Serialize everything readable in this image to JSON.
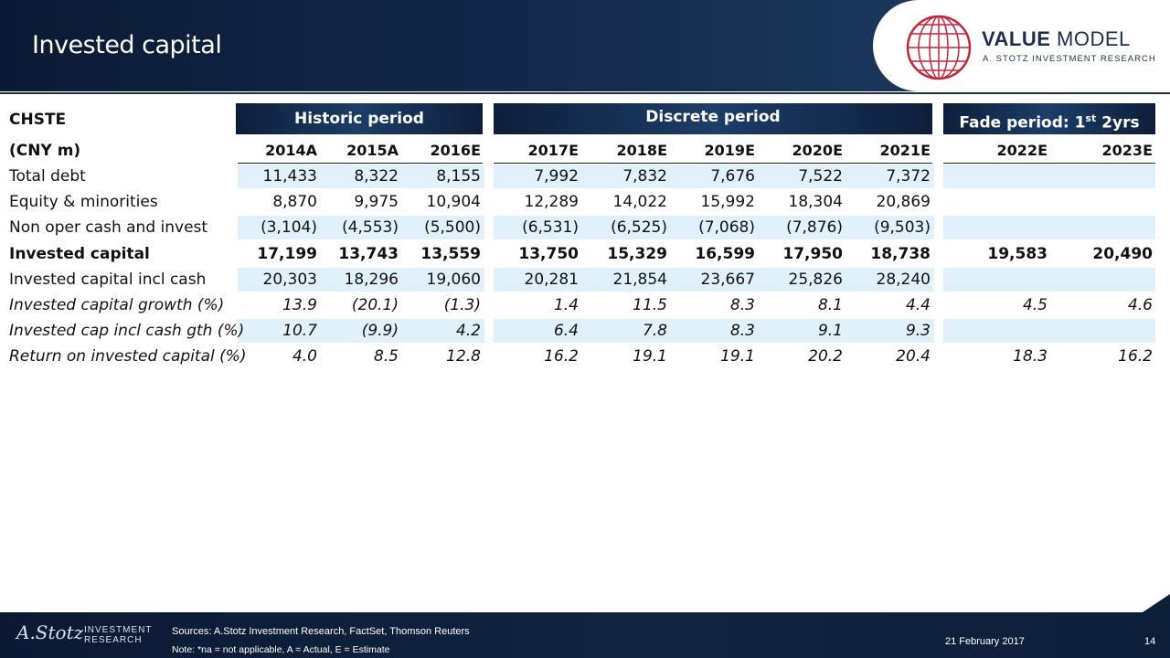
{
  "header": {
    "title": "Invested capital",
    "brand_bold": "VALUE",
    "brand_light": " MODEL",
    "brand_sub": "A. STOTZ INVESTMENT RESEARCH"
  },
  "table": {
    "ticker": "CHSTE",
    "unit": "(CNY m)",
    "groups": {
      "historic": "Historic period",
      "discrete": "Discrete period",
      "fade_prefix": "Fade period: 1",
      "fade_sup": "st",
      "fade_suffix": " 2yrs"
    },
    "years": [
      "2014A",
      "2015A",
      "2016E",
      "2017E",
      "2018E",
      "2019E",
      "2020E",
      "2021E",
      "2022E",
      "2023E"
    ],
    "rows": [
      {
        "label": "Total debt",
        "values": [
          "11,433",
          "8,322",
          "8,155",
          "7,992",
          "7,832",
          "7,676",
          "7,522",
          "7,372",
          "",
          ""
        ]
      },
      {
        "label": "Equity & minorities",
        "values": [
          "8,870",
          "9,975",
          "10,904",
          "12,289",
          "14,022",
          "15,992",
          "18,304",
          "20,869",
          "",
          ""
        ]
      },
      {
        "label": "Non oper cash and invest",
        "values": [
          "(3,104)",
          "(4,553)",
          "(5,500)",
          "(6,531)",
          "(6,525)",
          "(7,068)",
          "(7,876)",
          "(9,503)",
          "",
          ""
        ]
      },
      {
        "label": "Invested capital",
        "values": [
          "17,199",
          "13,743",
          "13,559",
          "13,750",
          "15,329",
          "16,599",
          "17,950",
          "18,738",
          "19,583",
          "20,490"
        ]
      },
      {
        "label": "Invested capital incl cash",
        "values": [
          "20,303",
          "18,296",
          "19,060",
          "20,281",
          "21,854",
          "23,667",
          "25,826",
          "28,240",
          "",
          ""
        ]
      },
      {
        "label": "Invested capital growth (%)",
        "values": [
          "13.9",
          "(20.1)",
          "(1.3)",
          "1.4",
          "11.5",
          "8.3",
          "8.1",
          "4.4",
          "4.5",
          "4.6"
        ]
      },
      {
        "label": "Invested cap incl cash gth (%)",
        "values": [
          "10.7",
          "(9.9)",
          "4.2",
          "6.4",
          "7.8",
          "8.3",
          "9.1",
          "9.3",
          "",
          ""
        ]
      },
      {
        "label": "Return on invested capital (%)",
        "values": [
          "4.0",
          "8.5",
          "12.8",
          "16.2",
          "19.1",
          "19.1",
          "20.2",
          "20.4",
          "18.3",
          "16.2"
        ]
      }
    ]
  },
  "footer": {
    "signature": "A.Stotz",
    "investment_line1": "INVESTMENT",
    "investment_line2": "RESEARCH",
    "sources": "Sources: A.Stotz Investment Research, FactSet, Thomson Reuters",
    "note": "Note: *na = not applicable, A = Actual, E = Estimate",
    "date": "21 February 2017",
    "page": "14"
  }
}
